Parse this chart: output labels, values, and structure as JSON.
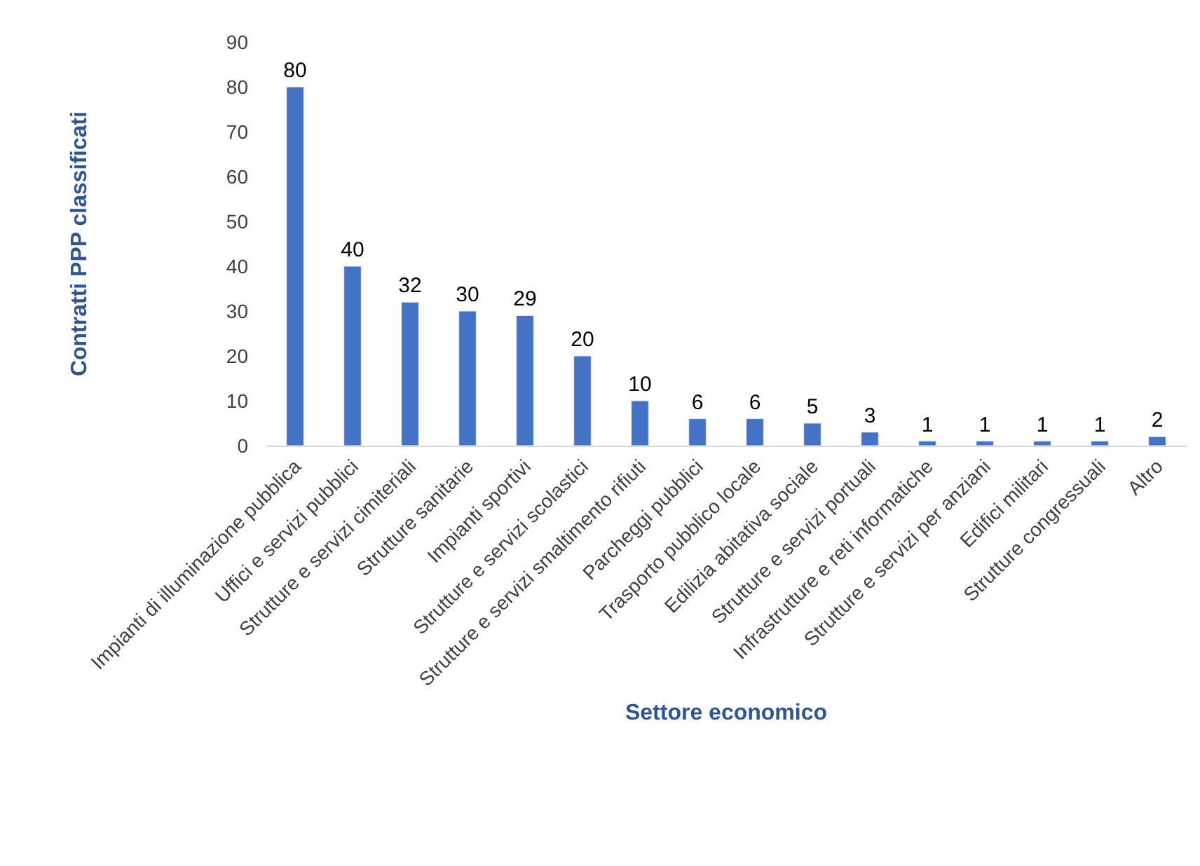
{
  "chart_data": {
    "type": "bar",
    "xlabel": "Settore economico",
    "ylabel": "Contratti PPP classificati",
    "categories": [
      "Impianti di illuminazione pubblica",
      "Uffici e servizi pubblici",
      "Strutture e servizi cimiteriali",
      "Strutture sanitarie",
      "Impianti sportivi",
      "Strutture e servizi scolastici",
      "Strutture e servizi smaltimento rifiuti",
      "Parcheggi pubblici",
      "Trasporto pubblico locale",
      "Edilizia abitativa sociale",
      "Strutture e servizi portuali",
      "Infrastrutture e reti informatiche",
      "Strutture e servizi per anziani",
      "Edifici militari",
      "Strutture congressuali",
      "Altro"
    ],
    "values": [
      80,
      40,
      32,
      30,
      29,
      20,
      10,
      6,
      6,
      5,
      3,
      1,
      1,
      1,
      1,
      2
    ],
    "color": "#4472c4",
    "ylim": [
      0,
      90
    ],
    "yticks": [
      0,
      10,
      20,
      30,
      40,
      50,
      60,
      70,
      80,
      90
    ],
    "grid": false,
    "data_labels": true
  }
}
